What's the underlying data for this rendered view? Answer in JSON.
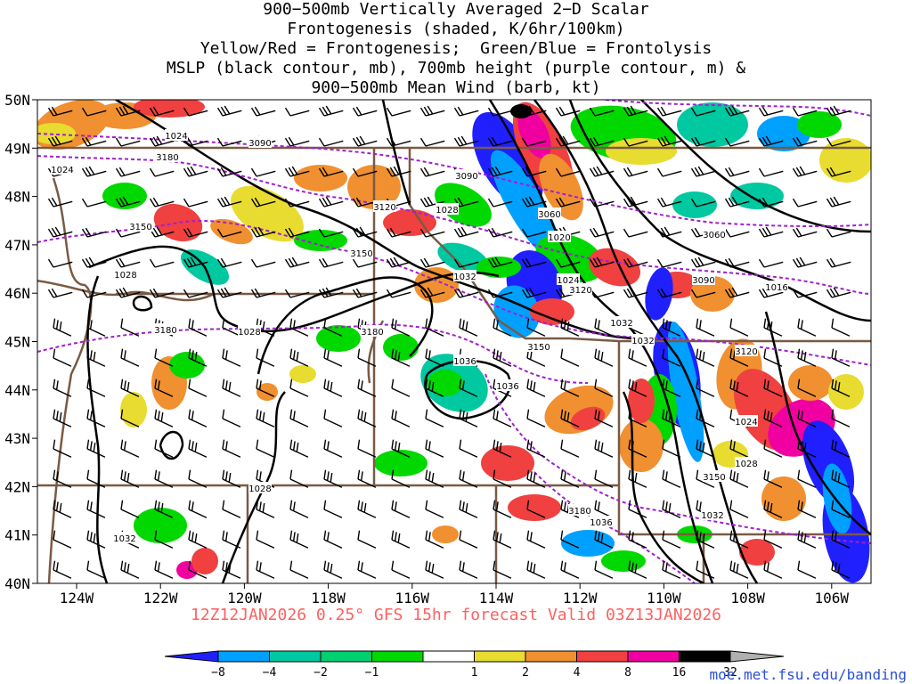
{
  "title_lines": [
    "900−500mb Vertically Averaged 2−D Scalar",
    "Frontogenesis (shaded, K/6hr/100km)",
    "Yellow/Red = Frontogenesis;  Green/Blue = Frontolysis",
    "MSLP (black contour, mb), 700mb height (purple contour, m) &",
    "900−500mb Mean Wind (barb, kt)"
  ],
  "lat_labels": [
    "50N",
    "49N",
    "48N",
    "47N",
    "46N",
    "45N",
    "44N",
    "43N",
    "42N",
    "41N",
    "40N"
  ],
  "lon_labels": [
    "124W",
    "122W",
    "120W",
    "118W",
    "116W",
    "114W",
    "112W",
    "110W",
    "108W",
    "106W"
  ],
  "valid_text": "12Z12JAN2026 0.25° GFS 15hr forecast Valid 03Z13JAN2026",
  "credit": "moe.met.fsu.edu/banding",
  "colorbar": {
    "labels": [
      "−8",
      "−4",
      "−2",
      "−1",
      "1",
      "2",
      "4",
      "8",
      "16",
      "32"
    ],
    "colors": [
      "#2020ff",
      "#00a0ff",
      "#00c8a0",
      "#00d070",
      "#00d800",
      "#ffffff",
      "#e8dc30",
      "#f09030",
      "#f04040",
      "#f000a0",
      "#000000",
      "#b0b0b0"
    ]
  },
  "contour_labels": {
    "mslp": [
      "1024",
      "1024",
      "1028",
      "1028",
      "1028",
      "1032",
      "1032",
      "1036",
      "1036",
      "1020",
      "1024",
      "1028",
      "1032",
      "1016",
      "1024",
      "1028",
      "1032",
      "1036",
      "1028",
      "1032"
    ],
    "height": [
      "3090",
      "3180",
      "3150",
      "3120",
      "3150",
      "3180",
      "3180",
      "3090",
      "3060",
      "3120",
      "3060",
      "3090",
      "3150",
      "3120",
      "3150",
      "3180"
    ]
  }
}
